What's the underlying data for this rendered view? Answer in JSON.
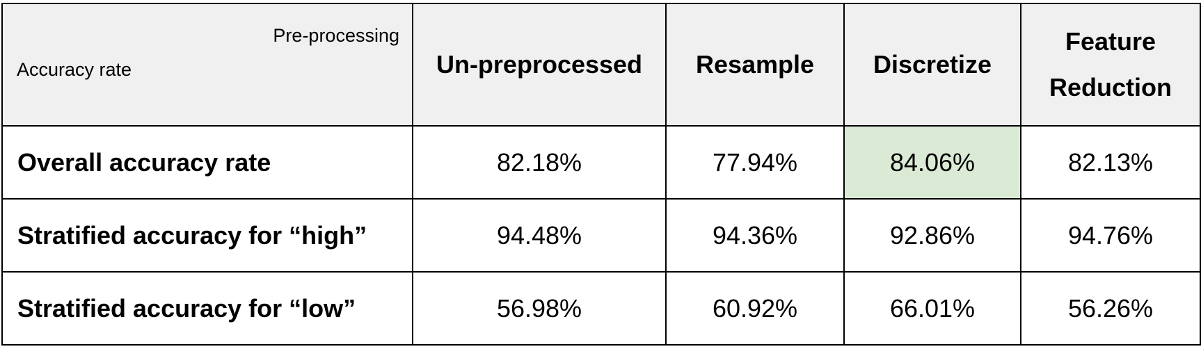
{
  "table": {
    "corner_top": "Pre-processing",
    "corner_left": "Accuracy rate",
    "columns": [
      "Un-preprocessed",
      "Resample",
      "Discretize",
      "Feature Reduction"
    ],
    "rows": [
      {
        "label": "Overall accuracy rate",
        "values": [
          "82.18%",
          "77.94%",
          "84.06%",
          "82.13%"
        ]
      },
      {
        "label": "Stratified accuracy for “high”",
        "values": [
          "94.48%",
          "94.36%",
          "92.86%",
          "94.76%"
        ]
      },
      {
        "label": "Stratified accuracy for “low”",
        "values": [
          "56.98%",
          "60.92%",
          "66.01%",
          "56.26%"
        ]
      }
    ],
    "highlight_color": "#dbead5",
    "header_bg": "#f0f0f0"
  }
}
